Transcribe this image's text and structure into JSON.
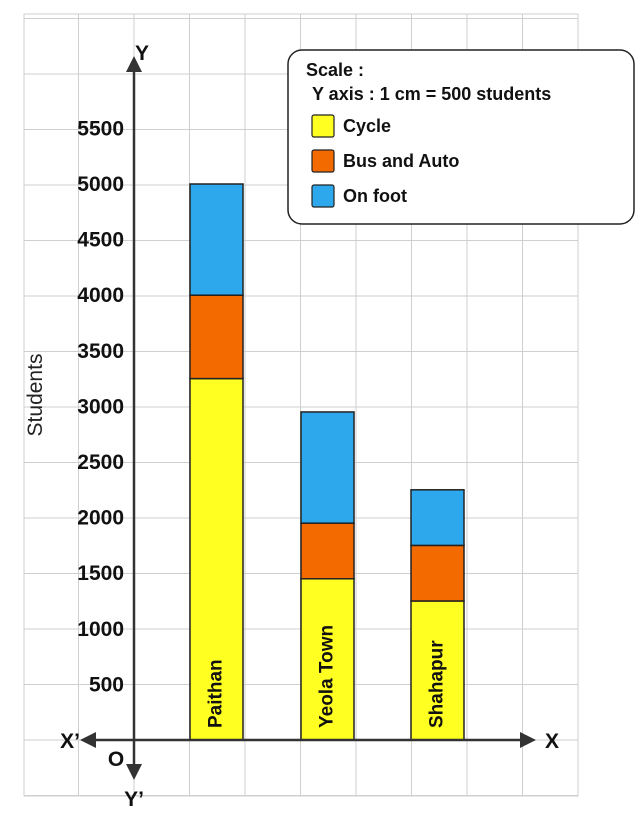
{
  "chart_data": {
    "type": "bar",
    "stacked": true,
    "orientation": "vertical",
    "ylabel": "Students",
    "ylim": [
      0,
      5500
    ],
    "yticks": [
      500,
      1000,
      1500,
      2000,
      2500,
      3000,
      3500,
      4000,
      4500,
      5000,
      5500
    ],
    "grid": true,
    "categories": [
      "Paithan",
      "Yeola Town",
      "Shahapur"
    ],
    "series": [
      {
        "name": "Cycle",
        "color": "#FFFF22",
        "values": [
          3250,
          1450,
          1250
        ]
      },
      {
        "name": "Bus and Auto",
        "color": "#F26A00",
        "values": [
          750,
          500,
          500
        ]
      },
      {
        "name": "On foot",
        "color": "#2EA8EC",
        "values": [
          1000,
          1000,
          500
        ]
      }
    ],
    "legend": {
      "placement": "top-right",
      "scale_title": "Scale :",
      "scale_text": "Y axis : 1 cm = 500 students"
    },
    "axes": {
      "x_pos": "X",
      "x_neg": "X’",
      "y_pos": "Y",
      "y_neg": "Y’",
      "origin": "O"
    }
  }
}
